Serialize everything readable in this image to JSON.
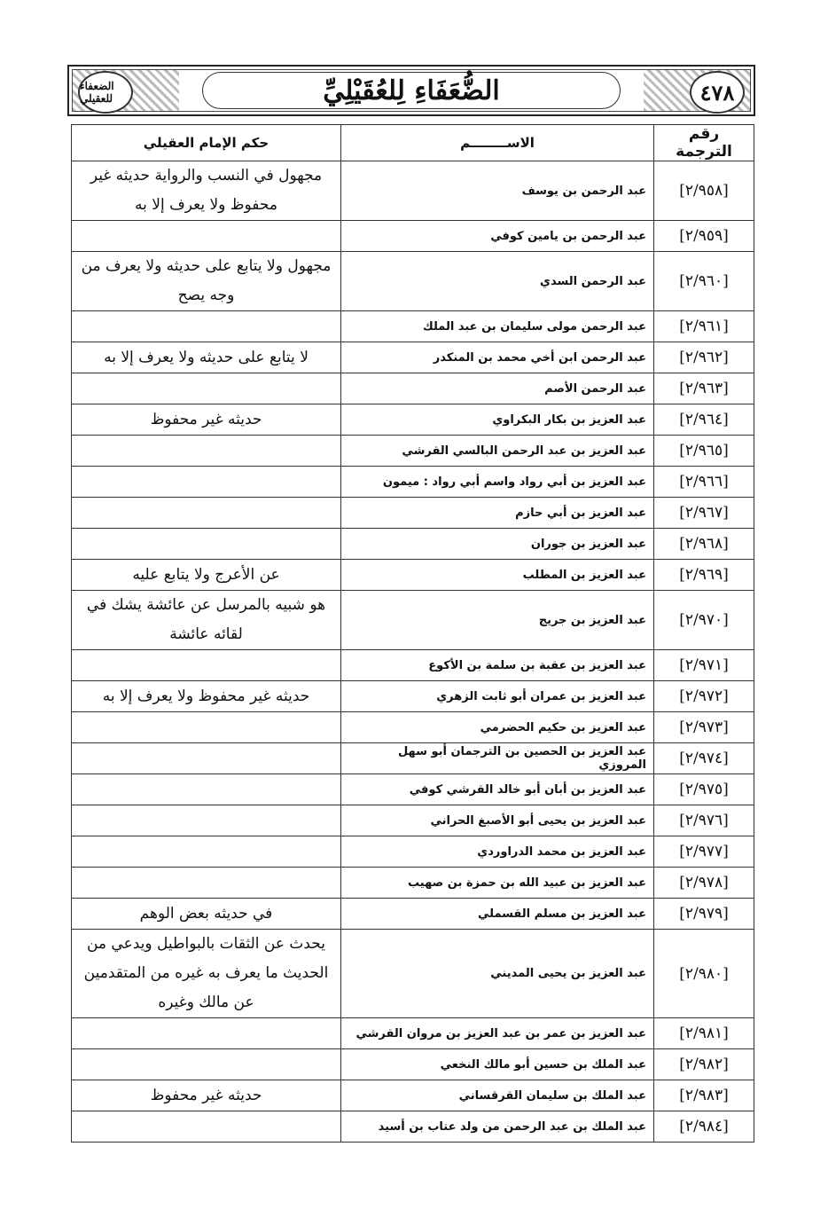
{
  "header": {
    "page_number": "٤٧٨",
    "book_title": "الضُّعَفَاءِ لِلعُقَيْلِيِّ",
    "logo_text": "الضعفاء للعقيلي"
  },
  "table": {
    "columns": {
      "number": "رقم الترجمة",
      "name": "الاســــــــم",
      "verdict": "حكم الإمام العقيلي"
    },
    "rows": [
      {
        "number": "[٢/٩٥٨]",
        "name": "عبد الرحمن بن يوسف",
        "verdict": "مجهول في النسب والرواية حديثه غير محفوظ ولا يعرف إلا به"
      },
      {
        "number": "[٢/٩٥٩]",
        "name": "عبد الرحمن بن يامين كوفي",
        "verdict": ""
      },
      {
        "number": "[٢/٩٦٠]",
        "name": "عبد الرحمن السدي",
        "verdict": "مجهول ولا يتابع على حديثه ولا يعرف من وجه يصح"
      },
      {
        "number": "[٢/٩٦١]",
        "name": "عبد الرحمن مولى سليمان بن عبد الملك",
        "verdict": ""
      },
      {
        "number": "[٢/٩٦٢]",
        "name": "عبد الرحمن ابن أخي محمد بن المنكدر",
        "verdict": "لا يتابع على حديثه ولا يعرف إلا به"
      },
      {
        "number": "[٢/٩٦٣]",
        "name": "عبد الرحمن الأصم",
        "verdict": ""
      },
      {
        "number": "[٢/٩٦٤]",
        "name": "عبد العزيز بن بكار البكراوي",
        "verdict": "حديثه غير محفوظ"
      },
      {
        "number": "[٢/٩٦٥]",
        "name": "عبد العزيز بن عبد الرحمن البالسي القرشي",
        "verdict": ""
      },
      {
        "number": "[٢/٩٦٦]",
        "name": "عبد العزيز بن أبي رواد واسم أبي رواد : ميمون",
        "verdict": ""
      },
      {
        "number": "[٢/٩٦٧]",
        "name": "عبد العزيز بن أبي حازم",
        "verdict": ""
      },
      {
        "number": "[٢/٩٦٨]",
        "name": "عبد العزيز بن جوران",
        "verdict": ""
      },
      {
        "number": "[٢/٩٦٩]",
        "name": "عبد العزيز بن المطلب",
        "verdict": "عن الأعرج ولا يتابع عليه"
      },
      {
        "number": "[٢/٩٧٠]",
        "name": "عبد العزيز بن جريج",
        "verdict": "هو شبيه بالمرسل عن عائشة يشك في لقائه عائشة"
      },
      {
        "number": "[٢/٩٧١]",
        "name": "عبد العزيز بن عقبة بن سلمة بن الأكوع",
        "verdict": ""
      },
      {
        "number": "[٢/٩٧٢]",
        "name": "عبد العزيز بن عمران أبو ثابت الزهري",
        "verdict": "حديثه غير محفوظ ولا يعرف إلا به"
      },
      {
        "number": "[٢/٩٧٣]",
        "name": "عبد العزيز بن حكيم الحضرمي",
        "verdict": ""
      },
      {
        "number": "[٢/٩٧٤]",
        "name": "عبد العزيز بن الحصين بن الترجمان أبو سهل المروزي",
        "verdict": ""
      },
      {
        "number": "[٢/٩٧٥]",
        "name": "عبد العزيز بن أبان أبو خالد القرشي كوفي",
        "verdict": ""
      },
      {
        "number": "[٢/٩٧٦]",
        "name": "عبد العزيز بن يحيى أبو الأصبغ الحراني",
        "verdict": ""
      },
      {
        "number": "[٢/٩٧٧]",
        "name": "عبد العزيز بن محمد الدراوردي",
        "verdict": ""
      },
      {
        "number": "[٢/٩٧٨]",
        "name": "عبد العزيز بن عبيد الله بن حمزة بن صهيب",
        "verdict": ""
      },
      {
        "number": "[٢/٩٧٩]",
        "name": "عبد العزيز بن مسلم القسملي",
        "verdict": "في حديثه بعض الوهم"
      },
      {
        "number": "[٢/٩٨٠]",
        "name": "عبد العزيز بن يحيى المديني",
        "verdict": "يحدث عن الثقات بالبواطيل ويدعي من الحديث ما يعرف به غيره من المتقدمين عن مالك وغيره"
      },
      {
        "number": "[٢/٩٨١]",
        "name": "عبد العزيز بن عمر بن عبد العزيز بن مروان القرشي",
        "verdict": ""
      },
      {
        "number": "[٢/٩٨٢]",
        "name": "عبد الملك بن حسين أبو مالك النخعي",
        "verdict": ""
      },
      {
        "number": "[٢/٩٨٣]",
        "name": "عبد الملك بن سليمان القرقساني",
        "verdict": "حديثه غير محفوظ"
      },
      {
        "number": "[٢/٩٨٤]",
        "name": "عبد الملك بن عبد الرحمن من ولد عتاب بن أسيد",
        "verdict": ""
      }
    ]
  }
}
